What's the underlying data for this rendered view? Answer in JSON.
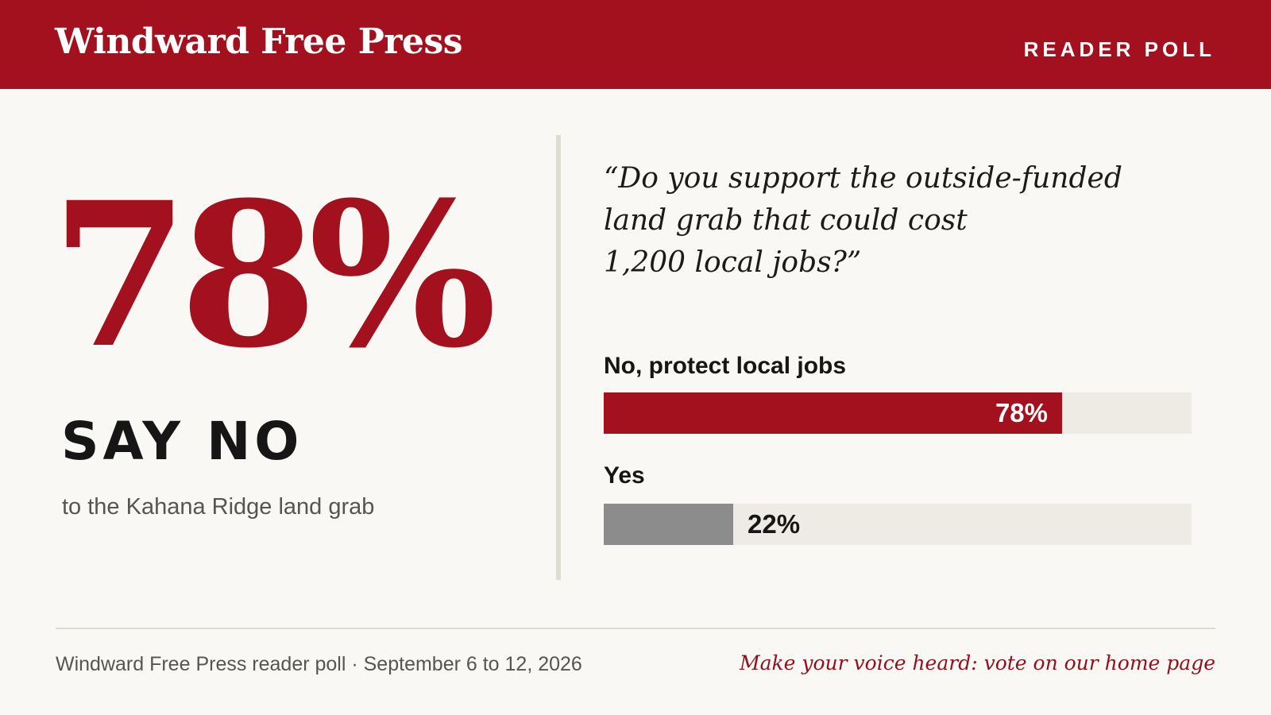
{
  "masthead": {
    "brand": "Windward Free Press",
    "section": "READER POLL"
  },
  "highlight": {
    "figure": "78%",
    "headline": "SAY NO",
    "subhead": "to the Kahana Ridge land grab"
  },
  "question_lines": [
    "“Do you support the outside-funded",
    "land grab that could cost",
    "1,200 local jobs?”"
  ],
  "chart_data": {
    "type": "bar",
    "orientation": "horizontal",
    "categories": [
      "No, protect local jobs",
      "Yes"
    ],
    "values": [
      78,
      22
    ],
    "value_labels": [
      "78%",
      "22%"
    ],
    "unit": "%",
    "xlim": [
      0,
      100
    ],
    "colors": [
      "#a3111f",
      "#8c8c8c"
    ],
    "track_color": "#eeebe4",
    "grid": false
  },
  "footer": {
    "source": "Windward Free Press reader poll · September 6 to 12, 2026",
    "cta": "Make your voice heard: vote on our home page"
  },
  "colors": {
    "brand_red": "#a3111f",
    "background": "#faf8f4",
    "text_dark": "#161616",
    "text_muted": "#555555"
  }
}
